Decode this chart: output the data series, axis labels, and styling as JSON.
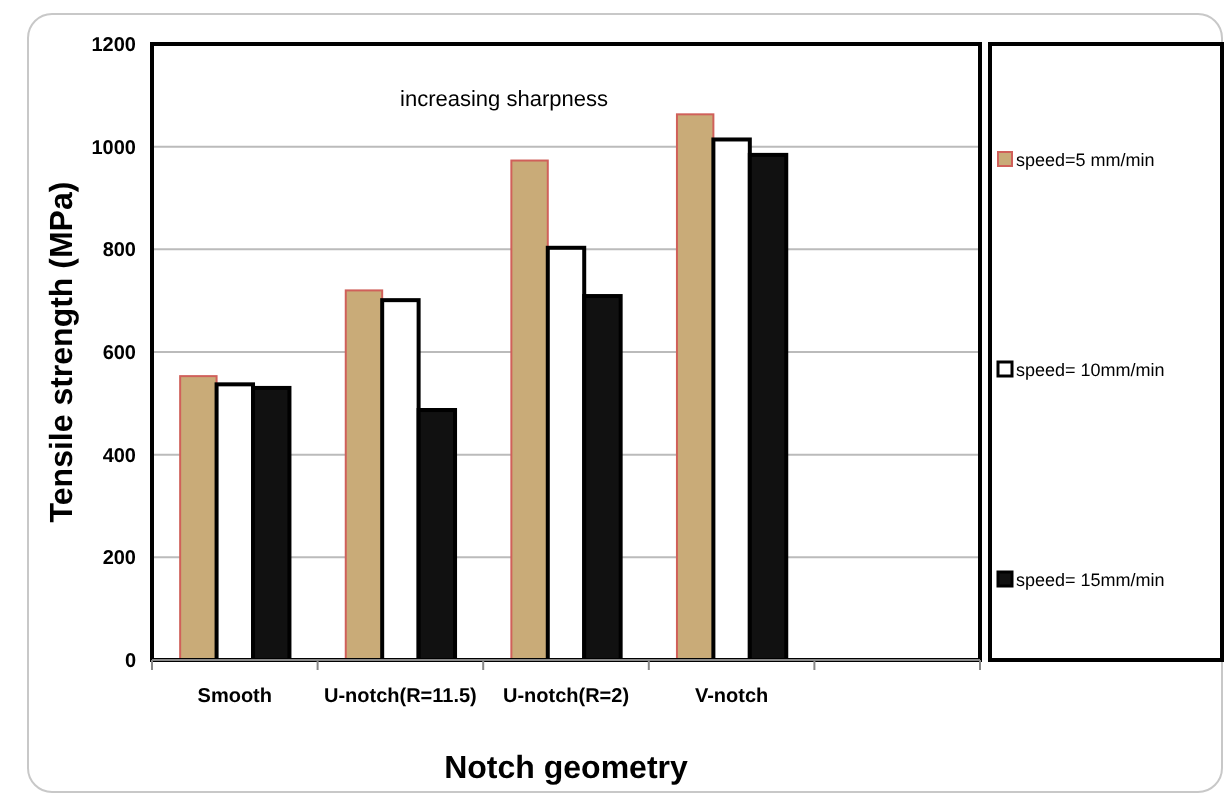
{
  "chart_data": {
    "type": "bar",
    "categories": [
      "Smooth",
      "U-notch(R=11.5)",
      "U-notch(R=2)",
      "V-notch",
      null
    ],
    "series": [
      {
        "name": "speed=5 mm/min",
        "color": "#c9ab78",
        "values": [
          553,
          720,
          973,
          1063,
          null
        ]
      },
      {
        "name": "speed= 10mm/min",
        "color": "#ffffff",
        "values": [
          537,
          701,
          803,
          1014,
          null
        ]
      },
      {
        "name": "speed= 15mm/min",
        "color": "#111111",
        "values": [
          530,
          487,
          709,
          984,
          null
        ]
      }
    ],
    "xlabel": "Notch geometry",
    "ylabel": "Tensile strength (MPa)",
    "ylim": [
      0,
      1200
    ],
    "yticks": [
      0,
      200,
      400,
      600,
      800,
      1000,
      1200
    ],
    "grid": "y",
    "legend": "right",
    "annotations": [
      "increasing sharpness"
    ]
  }
}
